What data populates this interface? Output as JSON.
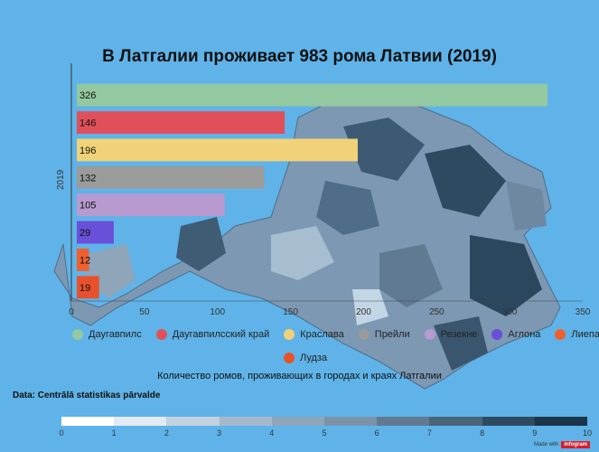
{
  "title": "В Латгалии проживает 983 рома Латвии (2019)",
  "chart_data": {
    "type": "bar",
    "orientation": "horizontal",
    "title": "В Латгалии проживает 983 рома Латвии (2019)",
    "ylabel": "2019",
    "xlabel": "Количество ромов, проживающих в городах и краях Латгалии",
    "xlim": [
      0,
      350
    ],
    "xticks": [
      0,
      50,
      100,
      150,
      200,
      250,
      300,
      350
    ],
    "grid": false,
    "legend_position": "bottom",
    "series": [
      {
        "name": "Даугавпилс",
        "value": 326,
        "color": "#93c9a0"
      },
      {
        "name": "Даугавпилсский край",
        "value": 146,
        "color": "#e0505a"
      },
      {
        "name": "Краслава",
        "value": 196,
        "color": "#f1d279"
      },
      {
        "name": "Прейли",
        "value": 132,
        "color": "#9b9b9b"
      },
      {
        "name": "Резекне",
        "value": 105,
        "color": "#b79ad0"
      },
      {
        "name": "Аглона",
        "value": 29,
        "color": "#6a4fd8"
      },
      {
        "name": "Лиепая",
        "value": 12,
        "color": "#f0602e"
      },
      {
        "name": "Лудза",
        "value": 19,
        "color": "#e8522a"
      }
    ]
  },
  "source": "Data: Centrālā statistikas pārvalde",
  "scale": {
    "ticks": [
      "0",
      "1",
      "2",
      "3",
      "4",
      "5",
      "6",
      "7",
      "8",
      "9",
      "10"
    ],
    "colors": [
      "#ffffff",
      "#e3eaf1",
      "#c3d1de",
      "#a6b9cb",
      "#8ea5ba",
      "#7a93a9",
      "#5f7a91",
      "#4a6479",
      "#2e4a60",
      "#1a3549"
    ]
  },
  "credit": {
    "text": "Made with",
    "brand": "infogram"
  }
}
